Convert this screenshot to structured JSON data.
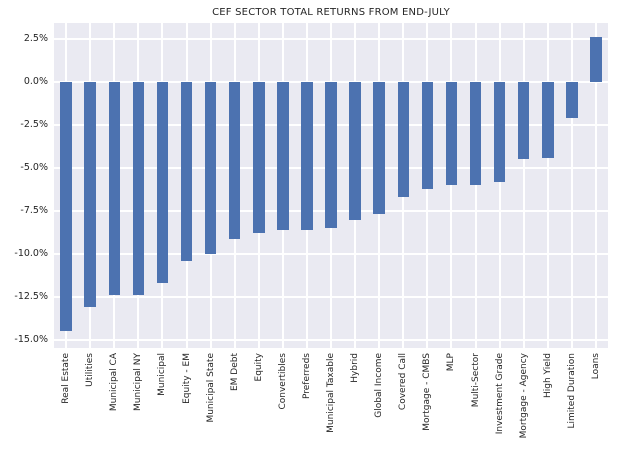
{
  "chart_data": {
    "type": "bar",
    "title": "CEF SECTOR TOTAL RETURNS FROM END-JULY",
    "xlabel": "",
    "ylabel": "",
    "unit": "%",
    "categories": [
      "Real Estate",
      "Utilities",
      "Municipal CA",
      "Municipal NY",
      "Municipal",
      "Equity - EM",
      "Municipal State",
      "EM Debt",
      "Equity",
      "Convertibles",
      "Preferreds",
      "Municipal Taxable",
      "Hybrid",
      "Global Income",
      "Covered Call",
      "Mortgage - CMBS",
      "MLP",
      "Multi-Sector",
      "Investment Grade",
      "Mortgage - Agency",
      "High Yield",
      "Limited Duration",
      "Loans"
    ],
    "values": [
      -14.5,
      -13.1,
      -12.4,
      -12.4,
      -11.7,
      -10.4,
      -10.0,
      -9.1,
      -8.8,
      -8.6,
      -8.6,
      -8.5,
      -8.0,
      -7.7,
      -6.7,
      -6.2,
      -6.0,
      -6.0,
      -5.8,
      -4.5,
      -4.4,
      -2.1,
      2.6
    ],
    "yticks": [
      2.5,
      0.0,
      -2.5,
      -5.0,
      -7.5,
      -10.0,
      -12.5,
      -15.0
    ],
    "ytick_labels": [
      "2.5%",
      "0.0%",
      "-2.5%",
      "-5.0%",
      "-7.5%",
      "-10.0%",
      "-12.5%",
      "-15.0%"
    ],
    "ylim": [
      3.43,
      -15.47
    ],
    "grid": "on",
    "legend": "none",
    "colors": {
      "bar": "#4C72B0",
      "plot_background": "#EAEAF2",
      "gridline": "#FFFFFF",
      "text": "#262626",
      "canvas_background": "#FFFFFF"
    }
  }
}
